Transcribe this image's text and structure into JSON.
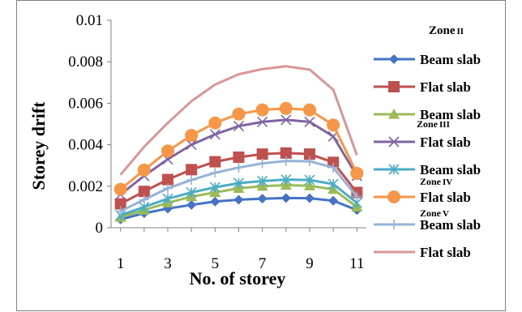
{
  "chart_data": {
    "type": "line",
    "title": "",
    "xlabel": "No. of storey",
    "ylabel": "Storey drift",
    "x": [
      1,
      2,
      3,
      4,
      5,
      6,
      7,
      8,
      9,
      10,
      11
    ],
    "xticks": [
      "1",
      "3",
      "5",
      "7",
      "9",
      "11"
    ],
    "xlim": [
      0.6,
      11.4
    ],
    "yticks": [
      "0",
      "0.002",
      "0.004",
      "0.006",
      "0.008",
      "0.01"
    ],
    "ylim": [
      0,
      0.01
    ],
    "grid": false,
    "legend_position": "right",
    "zone_labels": [
      "Zone II",
      "Zone III",
      "Zone IV",
      "Zone V"
    ],
    "series": [
      {
        "name": "Beam slab",
        "color": "#4472C4",
        "marker": "diamond",
        "values": [
          0.0004,
          0.0007,
          0.00092,
          0.0011,
          0.00126,
          0.00135,
          0.0014,
          0.00143,
          0.00142,
          0.0013,
          0.00085
        ]
      },
      {
        "name": "Flat slab",
        "color": "#C0504D",
        "marker": "square",
        "values": [
          0.00115,
          0.00175,
          0.00232,
          0.0028,
          0.00318,
          0.0034,
          0.00355,
          0.0036,
          0.00355,
          0.00315,
          0.0017
        ]
      },
      {
        "name": "Beam slab",
        "color": "#9BBB59",
        "marker": "triangle",
        "values": [
          0.0005,
          0.00085,
          0.0012,
          0.0015,
          0.0017,
          0.0019,
          0.002,
          0.00205,
          0.00202,
          0.00185,
          0.001
        ]
      },
      {
        "name": "Flat slab",
        "color": "#8064A2",
        "marker": "x",
        "values": [
          0.0016,
          0.0025,
          0.0033,
          0.004,
          0.0045,
          0.0049,
          0.0051,
          0.0052,
          0.0051,
          0.0044,
          0.0025
        ]
      },
      {
        "name": "Beam slab",
        "color": "#4BACC6",
        "marker": "star",
        "values": [
          0.0006,
          0.001,
          0.0014,
          0.0017,
          0.00195,
          0.00215,
          0.00225,
          0.00232,
          0.0023,
          0.0021,
          0.0012
        ]
      },
      {
        "name": "Flat slab",
        "color": "#F79646",
        "marker": "circle",
        "values": [
          0.00185,
          0.00278,
          0.0037,
          0.00445,
          0.00505,
          0.00548,
          0.00568,
          0.00575,
          0.00568,
          0.00495,
          0.00262
        ]
      },
      {
        "name": "Beam slab",
        "color": "#95B3D7",
        "marker": "plus",
        "values": [
          0.0008,
          0.00135,
          0.0019,
          0.0023,
          0.00265,
          0.0029,
          0.0031,
          0.00322,
          0.0032,
          0.0029,
          0.0015
        ]
      },
      {
        "name": "Flat slab",
        "color": "#D99694",
        "marker": "dash",
        "values": [
          0.00255,
          0.0039,
          0.00505,
          0.0061,
          0.0069,
          0.0074,
          0.00765,
          0.00778,
          0.00762,
          0.00665,
          0.0035
        ]
      }
    ]
  }
}
